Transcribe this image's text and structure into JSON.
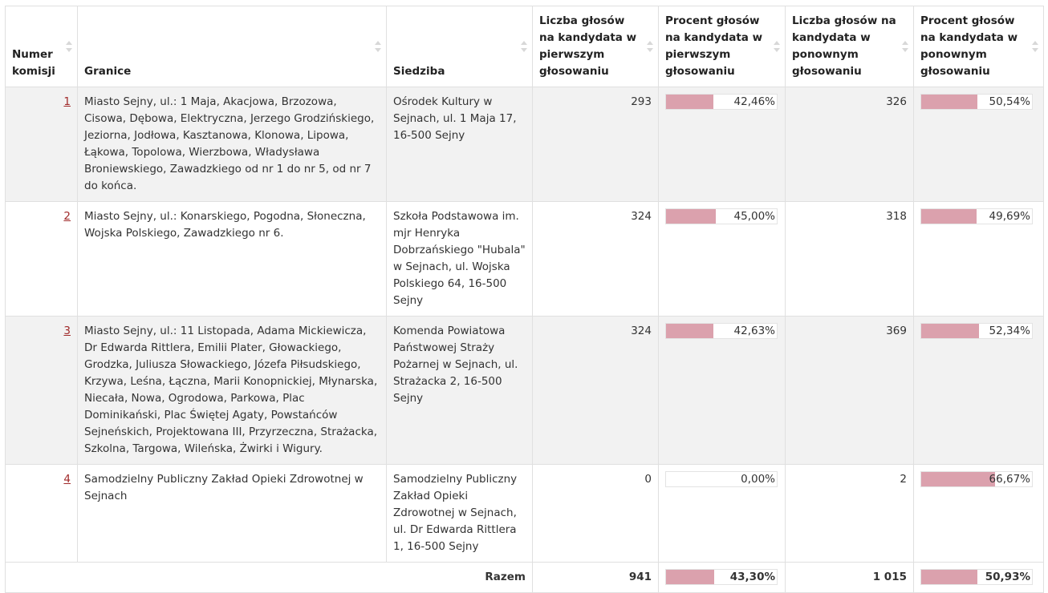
{
  "headers": {
    "numer": "Numer komisji",
    "granice": "Granice",
    "siedziba": "Siedziba",
    "liczba1": "Liczba głosów na kandydata w pierwszym głosowaniu",
    "procent1": "Procent głosów na kandydata w pierwszym głosowaniu",
    "liczba2": "Liczba głosów na kandydata w ponownym głosowaniu",
    "procent2": "Procent głosów na kandydata w ponownym głosowaniu"
  },
  "rows": [
    {
      "numer": "1",
      "granice": "Miasto Sejny, ul.: 1 Maja, Akacjowa, Brzozowa, Cisowa, Dębowa, Elektryczna, Jerzego Grodzińskiego, Jeziorna, Jodłowa, Kasztanowa, Klonowa, Lipowa, Łąkowa, Topolowa, Wierzbowa, Władysława Broniewskiego, Zawadzkiego od nr 1 do nr 5, od nr 7 do końca.",
      "siedziba": "Ośrodek Kultury w Sejnach, ul. 1 Maja 17, 16-500 Sejny",
      "liczba1": "293",
      "procent1": "42,46%",
      "procent1_value": 42.46,
      "liczba2": "326",
      "procent2": "50,54%",
      "procent2_value": 50.54
    },
    {
      "numer": "2",
      "granice": "Miasto Sejny, ul.: Konarskiego, Pogodna, Słoneczna, Wojska Polskiego, Zawadzkiego nr 6.",
      "siedziba": "Szkoła Podstawowa im. mjr Henryka Dobrzańskiego \"Hubala\" w Sejnach, ul. Wojska Polskiego 64, 16-500 Sejny",
      "liczba1": "324",
      "procent1": "45,00%",
      "procent1_value": 45.0,
      "liczba2": "318",
      "procent2": "49,69%",
      "procent2_value": 49.69
    },
    {
      "numer": "3",
      "granice": "Miasto Sejny, ul.: 11 Listopada, Adama Mickiewicza, Dr Edwarda Rittlera, Emilii Plater, Głowackiego, Grodzka, Juliusza Słowackiego, Józefa Piłsudskiego, Krzywa, Leśna, Łączna, Marii Konopnickiej, Młynarska, Niecała, Nowa, Ogrodowa, Parkowa, Plac Dominikański, Plac Świętej Agaty, Powstańców Sejneńskich, Projektowana III, Przyrzeczna, Strażacka, Szkolna, Targowa, Wileńska, Żwirki i Wigury.",
      "siedziba": "Komenda Powiatowa Państwowej Straży Pożarnej w Sejnach, ul. Strażacka 2, 16-500 Sejny",
      "liczba1": "324",
      "procent1": "42,63%",
      "procent1_value": 42.63,
      "liczba2": "369",
      "procent2": "52,34%",
      "procent2_value": 52.34
    },
    {
      "numer": "4",
      "granice": "Samodzielny Publiczny Zakład Opieki Zdrowotnej w Sejnach",
      "siedziba": "Samodzielny Publiczny Zakład Opieki Zdrowotnej w Sejnach, ul. Dr Edwarda Rittlera 1, 16-500 Sejny",
      "liczba1": "0",
      "procent1": "0,00%",
      "procent1_value": 0.0,
      "liczba2": "2",
      "procent2": "66,67%",
      "procent2_value": 66.67
    }
  ],
  "total": {
    "label": "Razem",
    "liczba1": "941",
    "procent1": "43,30%",
    "procent1_value": 43.3,
    "liczba2": "1 015",
    "procent2": "50,93%",
    "procent2_value": 50.93
  },
  "colors": {
    "bar": "#dba1ad",
    "link": "#a02a2a",
    "shaded_row": "#f2f2f2"
  }
}
